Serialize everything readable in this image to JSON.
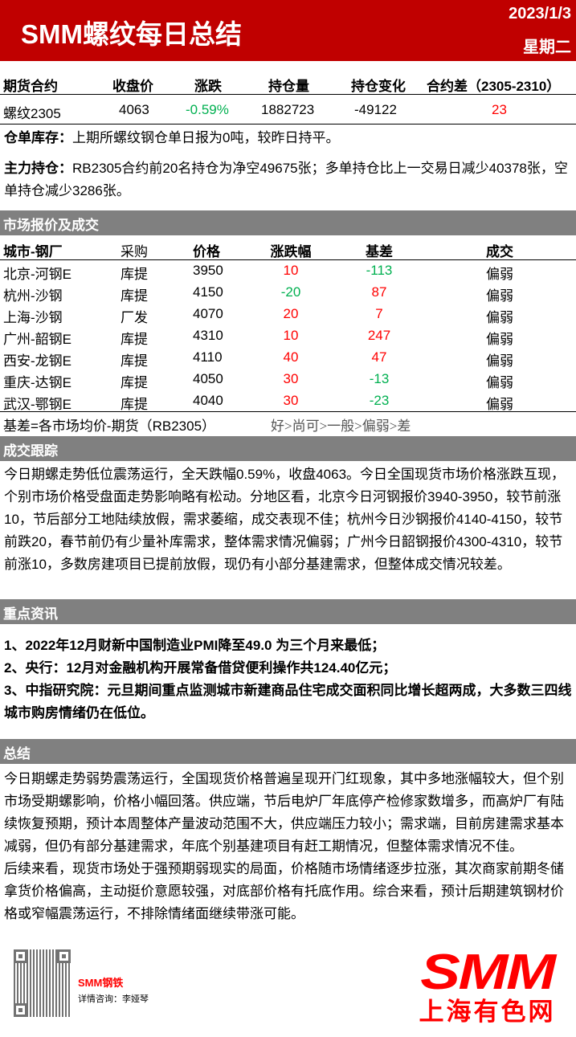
{
  "header": {
    "title": "SMM螺纹每日总结",
    "date": "2023/1/3",
    "weekday": "星期二",
    "bg_color": "#c00000"
  },
  "futures": {
    "headers": [
      "期货合约",
      "收盘价",
      "涨跌",
      "持仓量",
      "持仓变化",
      "合约差（2305-2310）"
    ],
    "row": {
      "contract": "螺纹2305",
      "close": "4063",
      "change": "-0.59%",
      "open_interest": "1882723",
      "oi_change": "-49122",
      "spread": "23"
    }
  },
  "warehouse": {
    "label": "仓单库存：",
    "text": "上期所螺纹钢仓单日报为0吨，较昨日持平。"
  },
  "main_position": {
    "label": "主力持仓：",
    "text": "RB2305合约前20名持仓为净空49675张；多单持仓比上一交易日减少40378张，空单持仓减少3286张。"
  },
  "market": {
    "section_title": "市场报价及成交",
    "headers": [
      "城市-钢厂",
      "采购",
      "价格",
      "涨跌幅",
      "基差",
      "成交"
    ],
    "rows": [
      {
        "city": "北京-河钢E",
        "purchase": "库提",
        "price": "3950",
        "change": "10",
        "basis": "-113",
        "deal": "偏弱"
      },
      {
        "city": "杭州-沙钢",
        "purchase": "库提",
        "price": "4150",
        "change": "-20",
        "basis": "87",
        "deal": "偏弱"
      },
      {
        "city": "上海-沙钢",
        "purchase": "厂发",
        "price": "4070",
        "change": "20",
        "basis": "7",
        "deal": "偏弱"
      },
      {
        "city": "广州-韶钢E",
        "purchase": "库提",
        "price": "4310",
        "change": "10",
        "basis": "247",
        "deal": "偏弱"
      },
      {
        "city": "西安-龙钢E",
        "purchase": "库提",
        "price": "4110",
        "change": "40",
        "basis": "47",
        "deal": "偏弱"
      },
      {
        "city": "重庆-达钢E",
        "purchase": "库提",
        "price": "4050",
        "change": "30",
        "basis": "-13",
        "deal": "偏弱"
      },
      {
        "city": "武汉-鄂钢E",
        "purchase": "库提",
        "price": "4040",
        "change": "30",
        "basis": "-23",
        "deal": "偏弱"
      }
    ],
    "note_basis": "基差=各市场均价-期货（RB2305）",
    "note_scale": "好>尚可>一般>偏弱>差"
  },
  "tracking": {
    "section_title": "成交跟踪",
    "text": "今日期螺走势低位震荡运行，全天跌幅0.59%，收盘4063。今日全国现货市场价格涨跌互现，个别市场价格受盘面走势影响略有松动。分地区看，北京今日河钢报价3940-3950，较节前涨10，节后部分工地陆续放假，需求萎缩，成交表现不佳；杭州今日沙钢报价4140-4150，较节前跌20，春节前仍有少量补库需求，整体需求情况偏弱；广州今日韶钢报价4300-4310，较节前涨10，多数房建项目已提前放假，现仍有小部分基建需求，但整体成交情况较差。"
  },
  "news": {
    "section_title": "重点资讯",
    "items": [
      "1、2022年12月财新中国制造业PMI降至49.0 为三个月来最低；",
      "2、央行：12月对金融机构开展常备借贷便利操作共124.40亿元；",
      "3、中指研究院：元旦期间重点监测城市新建商品住宅成交面积同比增长超两成，大多数三四线城市购房情绪仍在低位。"
    ]
  },
  "summary": {
    "section_title": "总结",
    "paragraphs": [
      "今日期螺走势弱势震荡运行，全国现货价格普遍呈现开门红现象，其中多地涨幅较大，但个别市场受期螺影响，价格小幅回落。供应端，节后电炉厂年底停产检修家数增多，而高炉厂有陆续恢复预期，预计本周整体产量波动范围不大，供应端压力较小；需求端，目前房建需求基本减弱，但仍有部分基建需求，年底个别基建项目有赶工期情况，但整体需求情况不佳。",
      "后续来看，现货市场处于强预期弱现实的局面，价格随市场情绪逐步拉涨，其次商家前期冬储拿货价格偏高，主动挺价意愿较强，对底部价格有托底作用。综合来看，预计后期建筑钢材价格或窄幅震荡运行，不排除情绪面继续带涨可能。"
    ]
  },
  "footer": {
    "brand": "SMM钢铁",
    "contact": "详情咨询：李娅琴",
    "logo_text": "SMM",
    "logo_cn": "上海有色网"
  },
  "colors": {
    "up": "#ff0000",
    "down": "#00b050",
    "section_bg": "#808080"
  }
}
